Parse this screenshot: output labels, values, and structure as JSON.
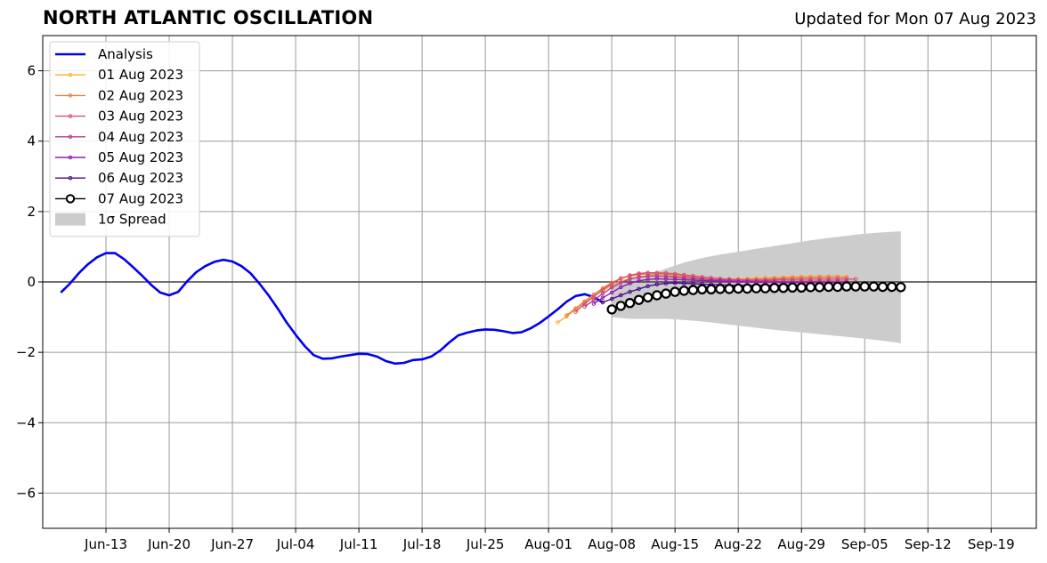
{
  "chart_data": {
    "type": "line",
    "title": "NORTH ATLANTIC OSCILLATION",
    "subtitle": "Updated for Mon 07 Aug 2023",
    "xlabel": "",
    "ylabel": "",
    "x_range": [
      "2023-06-06",
      "2023-09-24"
    ],
    "ylim": [
      -7,
      7
    ],
    "y_ticks": [
      6,
      4,
      2,
      0,
      -2,
      -4,
      -6
    ],
    "y_tick_labels": [
      "6",
      "4",
      "2",
      "0",
      "−2",
      "−4",
      "−6"
    ],
    "x_ticks": [
      "2023-06-13",
      "2023-06-20",
      "2023-06-27",
      "2023-07-04",
      "2023-07-11",
      "2023-07-18",
      "2023-07-25",
      "2023-08-01",
      "2023-08-08",
      "2023-08-15",
      "2023-08-22",
      "2023-08-29",
      "2023-09-05",
      "2023-09-12",
      "2023-09-19"
    ],
    "x_tick_labels": [
      "Jun-13",
      "Jun-20",
      "Jun-27",
      "Jul-04",
      "Jul-11",
      "Jul-18",
      "Jul-25",
      "Aug-01",
      "Aug-08",
      "Aug-15",
      "Aug-22",
      "Aug-29",
      "Sep-05",
      "Sep-12",
      "Sep-19"
    ],
    "grid": true,
    "legend_position": "top-left",
    "zero_line": 0,
    "analysis": {
      "name": "Analysis",
      "color": "#0000ee",
      "x": [
        "2023-06-08",
        "2023-06-09",
        "2023-06-10",
        "2023-06-11",
        "2023-06-12",
        "2023-06-13",
        "2023-06-14",
        "2023-06-15",
        "2023-06-16",
        "2023-06-17",
        "2023-06-18",
        "2023-06-19",
        "2023-06-20",
        "2023-06-21",
        "2023-06-22",
        "2023-06-23",
        "2023-06-24",
        "2023-06-25",
        "2023-06-26",
        "2023-06-27",
        "2023-06-28",
        "2023-06-29",
        "2023-06-30",
        "2023-07-01",
        "2023-07-02",
        "2023-07-03",
        "2023-07-04",
        "2023-07-05",
        "2023-07-06",
        "2023-07-07",
        "2023-07-08",
        "2023-07-09",
        "2023-07-10",
        "2023-07-11",
        "2023-07-12",
        "2023-07-13",
        "2023-07-14",
        "2023-07-15",
        "2023-07-16",
        "2023-07-17",
        "2023-07-18",
        "2023-07-19",
        "2023-07-20",
        "2023-07-21",
        "2023-07-22",
        "2023-07-23",
        "2023-07-24",
        "2023-07-25",
        "2023-07-26",
        "2023-07-27",
        "2023-07-28",
        "2023-07-29",
        "2023-07-30",
        "2023-07-31",
        "2023-08-01",
        "2023-08-02",
        "2023-08-03",
        "2023-08-04",
        "2023-08-05",
        "2023-08-06",
        "2023-08-07"
      ],
      "values": [
        -0.3,
        -0.05,
        0.25,
        0.5,
        0.7,
        0.82,
        0.82,
        0.65,
        0.42,
        0.18,
        -0.08,
        -0.3,
        -0.38,
        -0.28,
        0.02,
        0.28,
        0.45,
        0.57,
        0.63,
        0.58,
        0.45,
        0.25,
        -0.05,
        -0.38,
        -0.75,
        -1.15,
        -1.5,
        -1.82,
        -2.08,
        -2.18,
        -2.17,
        -2.12,
        -2.08,
        -2.04,
        -2.05,
        -2.12,
        -2.25,
        -2.32,
        -2.3,
        -2.22,
        -2.2,
        -2.12,
        -1.95,
        -1.72,
        -1.52,
        -1.44,
        -1.38,
        -1.35,
        -1.36,
        -1.4,
        -1.45,
        -1.43,
        -1.32,
        -1.17,
        -0.98,
        -0.78,
        -0.56,
        -0.4,
        -0.35,
        -0.43,
        -0.58
      ]
    },
    "forecasts": [
      {
        "name": "01 Aug 2023",
        "color": "#f9b233",
        "start": "2023-08-02",
        "values": [
          -1.15,
          -0.98,
          -0.78,
          -0.58,
          -0.4,
          -0.25,
          -0.1,
          0.02,
          0.1,
          0.14,
          0.16,
          0.17,
          0.17,
          0.16,
          0.15,
          0.13,
          0.11,
          0.1,
          0.09,
          0.08,
          0.08,
          0.09,
          0.1,
          0.11,
          0.12,
          0.13,
          0.14,
          0.15,
          0.15,
          0.15,
          0.15,
          0.15,
          0.15
        ]
      },
      {
        "name": "02 Aug 2023",
        "color": "#f07d3c",
        "start": "2023-08-03",
        "values": [
          -0.95,
          -0.75,
          -0.55,
          -0.36,
          -0.18,
          -0.02,
          0.1,
          0.17,
          0.21,
          0.23,
          0.23,
          0.22,
          0.2,
          0.17,
          0.15,
          0.13,
          0.11,
          0.09,
          0.08,
          0.07,
          0.07,
          0.08,
          0.09,
          0.1,
          0.11,
          0.12,
          0.13,
          0.13,
          0.14,
          0.14,
          0.14,
          0.13
        ]
      },
      {
        "name": "03 Aug 2023",
        "color": "#d95070",
        "start": "2023-08-04",
        "values": [
          -0.85,
          -0.62,
          -0.42,
          -0.22,
          -0.05,
          0.1,
          0.19,
          0.24,
          0.26,
          0.26,
          0.25,
          0.23,
          0.2,
          0.17,
          0.14,
          0.11,
          0.09,
          0.07,
          0.06,
          0.05,
          0.05,
          0.05,
          0.06,
          0.07,
          0.07,
          0.08,
          0.08,
          0.08,
          0.08,
          0.08,
          0.08,
          0.08
        ]
      },
      {
        "name": "04 Aug 2023",
        "color": "#b43c8c",
        "start": "2023-08-05",
        "values": [
          -0.7,
          -0.52,
          -0.33,
          -0.16,
          -0.02,
          0.08,
          0.14,
          0.17,
          0.17,
          0.16,
          0.14,
          0.12,
          0.1,
          0.08,
          0.06,
          0.05,
          0.04,
          0.03,
          0.02,
          0.02,
          0.02,
          0.02,
          0.02,
          0.02,
          0.02,
          0.02,
          0.02,
          0.02,
          0.02,
          0.02
        ]
      },
      {
        "name": "05 Aug 2023",
        "color": "#8c1eae",
        "start": "2023-08-06",
        "values": [
          -0.62,
          -0.45,
          -0.3,
          -0.15,
          -0.04,
          0.03,
          0.07,
          0.09,
          0.08,
          0.07,
          0.06,
          0.05,
          0.04,
          0.03,
          0.02,
          0.01,
          0.0,
          0.0,
          -0.01,
          -0.01,
          -0.01,
          -0.02,
          -0.02,
          -0.02,
          -0.02,
          -0.02,
          -0.02,
          -0.02,
          -0.02
        ]
      },
      {
        "name": "06 Aug 2023",
        "color": "#4b0a8c",
        "start": "2023-08-07",
        "values": [
          -0.58,
          -0.48,
          -0.38,
          -0.28,
          -0.2,
          -0.12,
          -0.07,
          -0.04,
          -0.03,
          -0.04,
          -0.05,
          -0.06,
          -0.07,
          -0.08,
          -0.09,
          -0.1,
          -0.1,
          -0.1,
          -0.1,
          -0.1,
          -0.1,
          -0.1,
          -0.1,
          -0.1,
          -0.1,
          -0.1,
          -0.1,
          -0.1
        ]
      }
    ],
    "latest": {
      "name": "07 Aug 2023",
      "color": "#000000",
      "start": "2023-08-08",
      "values": [
        -0.78,
        -0.68,
        -0.6,
        -0.51,
        -0.44,
        -0.38,
        -0.33,
        -0.28,
        -0.25,
        -0.23,
        -0.21,
        -0.21,
        -0.2,
        -0.2,
        -0.19,
        -0.19,
        -0.18,
        -0.18,
        -0.17,
        -0.17,
        -0.16,
        -0.16,
        -0.15,
        -0.15,
        -0.14,
        -0.14,
        -0.13,
        -0.13,
        -0.13,
        -0.13,
        -0.14,
        -0.14,
        -0.15
      ]
    },
    "spread": {
      "name": "1σ Spread",
      "color": "#cccccc",
      "x": [
        "2023-08-08",
        "2023-08-10",
        "2023-08-12",
        "2023-08-14",
        "2023-08-16",
        "2023-08-18",
        "2023-08-20",
        "2023-08-22",
        "2023-08-24",
        "2023-08-26",
        "2023-08-28",
        "2023-08-30",
        "2023-09-01",
        "2023-09-03",
        "2023-09-05",
        "2023-09-07",
        "2023-09-09"
      ],
      "upper": [
        -0.05,
        0.05,
        0.2,
        0.38,
        0.55,
        0.68,
        0.78,
        0.86,
        0.94,
        1.02,
        1.1,
        1.18,
        1.25,
        1.31,
        1.37,
        1.41,
        1.44
      ],
      "lower": [
        -1.0,
        -1.05,
        -1.05,
        -1.05,
        -1.08,
        -1.12,
        -1.18,
        -1.24,
        -1.3,
        -1.36,
        -1.41,
        -1.46,
        -1.51,
        -1.56,
        -1.61,
        -1.67,
        -1.74
      ]
    }
  }
}
